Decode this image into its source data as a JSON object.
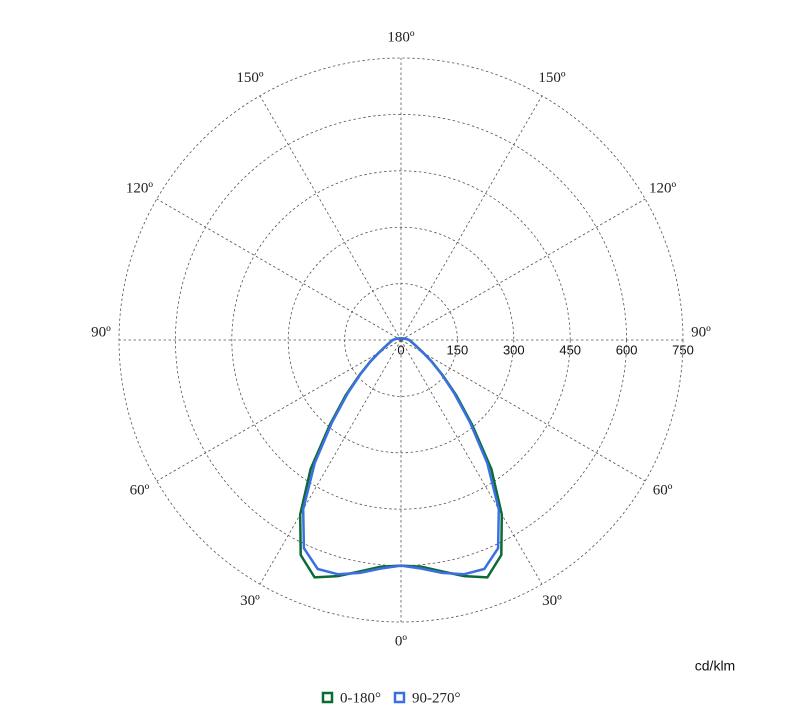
{
  "chart_data": {
    "type": "polar",
    "angle_ticks": [
      {
        "value": 0,
        "label": "0º"
      },
      {
        "value": 30,
        "label": "30º"
      },
      {
        "value": 60,
        "label": "60º"
      },
      {
        "value": 90,
        "label": "90º"
      },
      {
        "value": 120,
        "label": "120º"
      },
      {
        "value": 150,
        "label": "150º"
      },
      {
        "value": 180,
        "label": "180º"
      }
    ],
    "rlim": [
      0,
      750
    ],
    "rticks": [
      0,
      150,
      300,
      450,
      600,
      750
    ],
    "unit_label": "cd/klm",
    "angles": [
      0,
      5,
      10,
      15,
      20,
      25,
      30,
      35,
      40,
      45,
      50,
      55,
      60,
      70,
      80,
      90,
      100,
      120,
      150,
      180
    ],
    "series": [
      {
        "name": "0-180°",
        "color": "#0b6b35",
        "values": [
          600,
          605,
          625,
          650,
          672,
          631,
          536,
          419,
          294,
          208,
          143,
          100,
          70,
          40,
          28,
          22,
          15,
          8,
          5,
          5
        ]
      },
      {
        "name": "90-270°",
        "color": "#3a70e2",
        "values": [
          600,
          610,
          629,
          645,
          648,
          611,
          520,
          400,
          285,
          200,
          140,
          98,
          68,
          40,
          28,
          22,
          15,
          8,
          5,
          5
        ]
      }
    ],
    "grid": true
  }
}
